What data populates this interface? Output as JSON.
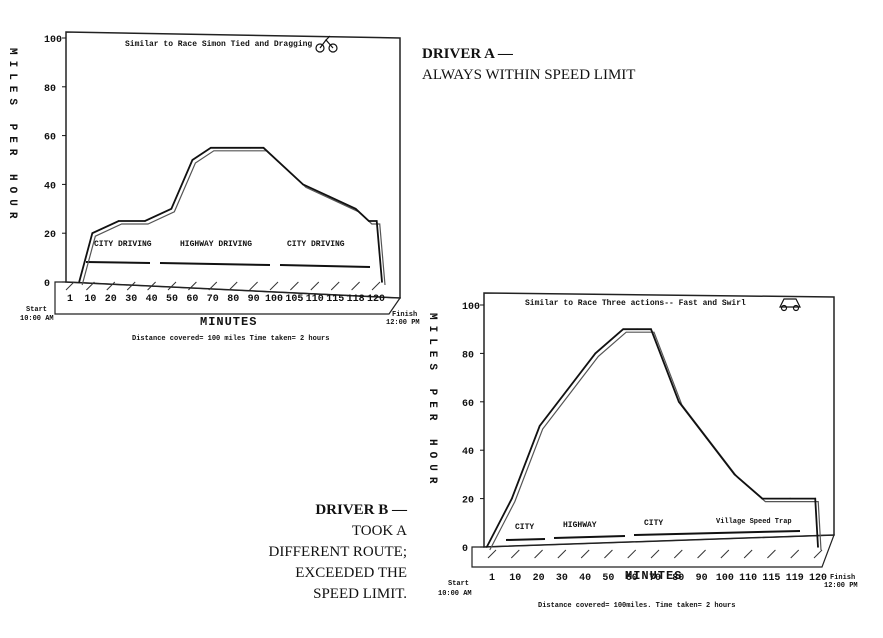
{
  "caption_a": {
    "bold": "DRIVER A —",
    "line": "ALWAYS WITHIN SPEED LIMIT"
  },
  "caption_b": {
    "bold": "DRIVER B —",
    "lines": [
      "TOOK A",
      "DIFFERENT ROUTE;",
      "EXCEEDED THE",
      "SPEED LIMIT."
    ]
  },
  "chart_data": [
    {
      "type": "line",
      "title": "Similar to Race Simon Tied and Dragging",
      "xlabel": "MINUTES",
      "ylabel": "MILES PER HOUR",
      "ylim": [
        0,
        100
      ],
      "xlim": [
        0,
        120
      ],
      "y_ticks": [
        "0",
        "20",
        "40",
        "60",
        "80",
        "100"
      ],
      "x_ticks": [
        "1",
        "10",
        "20",
        "30",
        "40",
        "50",
        "60",
        "70",
        "80",
        "90",
        "100",
        "105",
        "110",
        "115",
        "118",
        "120"
      ],
      "segments": [
        "CITY DRIVING",
        "HIGHWAY DRIVING",
        "CITY DRIVING"
      ],
      "start_label": [
        "Start",
        "10:00 AM"
      ],
      "finish_label": [
        "Finish",
        "12:00 PM"
      ],
      "footnote": "Distance covered= 100 miles  Time taken= 2 hours",
      "x": [
        5,
        10,
        20,
        30,
        40,
        48,
        55,
        70,
        75,
        90,
        100,
        110,
        115,
        118,
        120
      ],
      "y": [
        0,
        20,
        25,
        25,
        30,
        50,
        55,
        55,
        55,
        40,
        35,
        30,
        25,
        25,
        0
      ]
    },
    {
      "type": "line",
      "title": "Similar to Race Three actions-- Fast and Swirl",
      "xlabel": "MINUTES",
      "ylabel": "MILES PER HOUR",
      "ylim": [
        0,
        100
      ],
      "xlim": [
        0,
        120
      ],
      "y_ticks": [
        "0",
        "20",
        "40",
        "60",
        "80",
        "100"
      ],
      "x_ticks": [
        "1",
        "10",
        "20",
        "30",
        "40",
        "50",
        "60",
        "70",
        "80",
        "90",
        "100",
        "110",
        "115",
        "119",
        "120"
      ],
      "segments": [
        "CITY",
        "HIGHWAY",
        "CITY",
        "Village Speed Trap"
      ],
      "start_label": [
        "Start",
        "10:00 AM"
      ],
      "finish_label": [
        "Finish",
        "12:00 PM"
      ],
      "footnote": "Distance covered= 100miles. Time taken= 2 hours",
      "x": [
        1,
        10,
        20,
        30,
        40,
        50,
        55,
        60,
        70,
        80,
        90,
        100,
        110,
        119,
        120
      ],
      "y": [
        0,
        20,
        50,
        65,
        80,
        90,
        90,
        90,
        60,
        45,
        30,
        20,
        20,
        20,
        0
      ]
    }
  ]
}
